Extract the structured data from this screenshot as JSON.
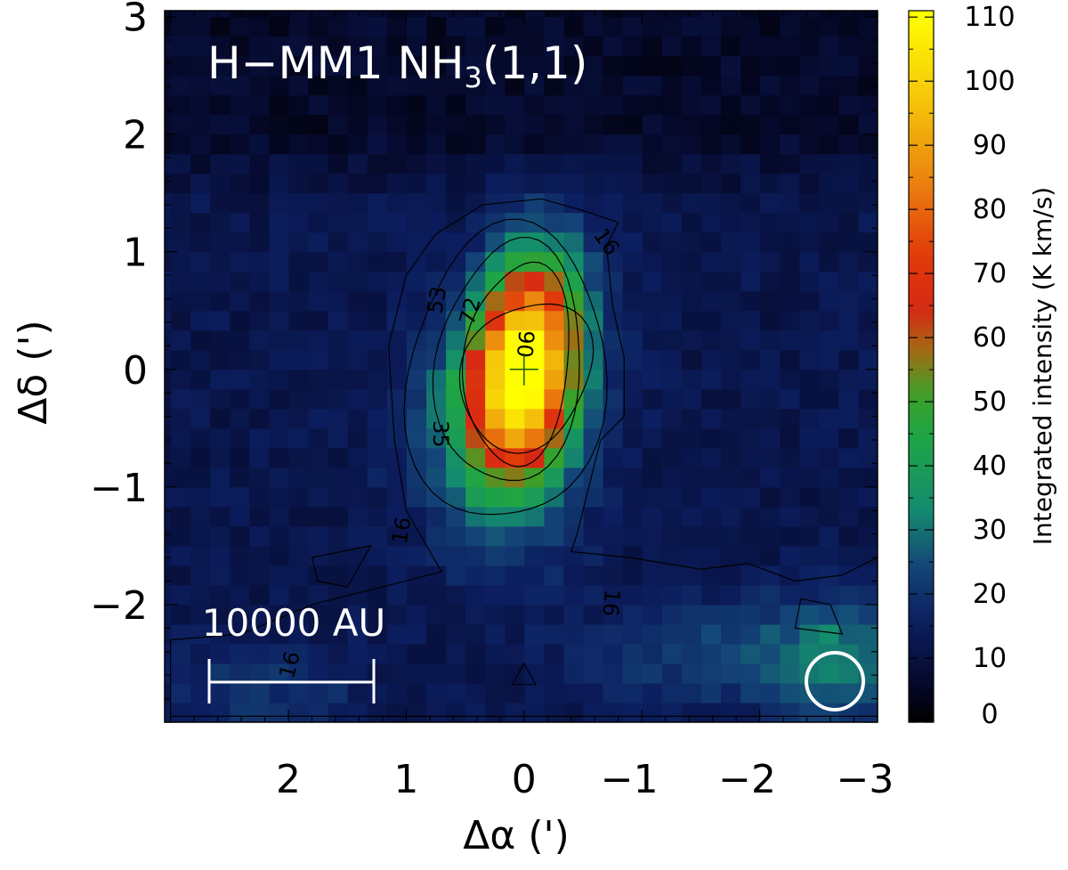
{
  "chart_data": {
    "type": "heatmap",
    "title": "H−MM1 NH",
    "title_subscript": "3",
    "title_suffix": "(1,1)",
    "xlabel": "Δα (')",
    "ylabel": "Δδ (')",
    "xlim": [
      3.05,
      -3.0
    ],
    "ylim": [
      -3.0,
      3.05
    ],
    "x_ticks": [
      2,
      1,
      0,
      -1,
      -2,
      -3
    ],
    "x_tick_labels": [
      "2",
      "1",
      "0",
      "−1",
      "−2",
      "−3"
    ],
    "y_ticks": [
      3,
      2,
      1,
      0,
      -1,
      -2
    ],
    "y_tick_labels": [
      "3",
      "2",
      "1",
      "0",
      "−1",
      "−2"
    ],
    "colorbar": {
      "label": "Integrated intensity (K km/s)",
      "min": 0,
      "max": 111,
      "ticks": [
        0,
        10,
        20,
        30,
        40,
        50,
        60,
        70,
        80,
        90,
        100,
        110
      ],
      "tick_labels": [
        "0",
        "10",
        "20",
        "30",
        "40",
        "50",
        "60",
        "70",
        "80",
        "90",
        "100",
        "110"
      ]
    },
    "peak": {
      "x": 0.0,
      "y": 0.0,
      "value": 108
    },
    "contour_levels": [
      16,
      35,
      53,
      72,
      90
    ],
    "contour_labels": [
      {
        "text": "16",
        "x": -0.65,
        "y": 1.05,
        "rot": 55
      },
      {
        "text": "53",
        "x": 0.68,
        "y": 0.58,
        "rot": -80
      },
      {
        "text": "72",
        "x": 0.4,
        "y": 0.48,
        "rot": -75
      },
      {
        "text": "90",
        "x": 0.05,
        "y": 0.22,
        "rot": 95
      },
      {
        "text": "35",
        "x": 0.77,
        "y": -0.55,
        "rot": 90
      },
      {
        "text": "16",
        "x": 0.98,
        "y": -1.38,
        "rot": -80
      },
      {
        "text": "16",
        "x": -0.68,
        "y": -1.98,
        "rot": 95
      },
      {
        "text": "16",
        "x": 1.93,
        "y": -2.53,
        "rot": -75
      }
    ],
    "scale_bar": {
      "label": "10000 AU"
    },
    "beam_marker": "beam-circle"
  }
}
